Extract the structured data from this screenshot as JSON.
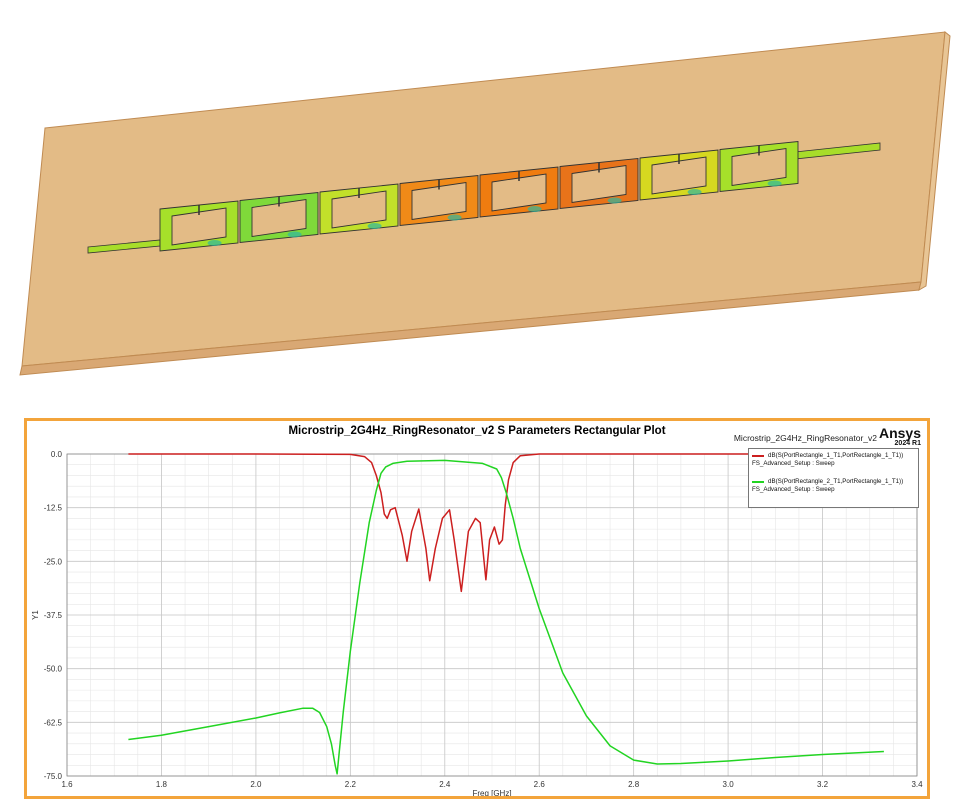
{
  "plot": {
    "title": "Microstrip_2G4Hz_RingResonator_v2 S Parameters Rectangular Plot",
    "design_name": "Microstrip_2G4Hz_RingResonator_v2",
    "brand": "Ansys",
    "brand_version": "2024 R1",
    "xlabel": "Freq [GHz]",
    "ylabel": "Y1",
    "legend": [
      {
        "label": "dB(S(PortRectangle_1_T1,PortRectangle_1_T1))",
        "sub": "FS_Advanced_Setup : Sweep",
        "color": "#cc1f1f"
      },
      {
        "label": "dB(S(PortRectangle_2_T1,PortRectangle_1_T1))",
        "sub": "FS_Advanced_Setup : Sweep",
        "color": "#22d422"
      }
    ]
  },
  "chart_data": {
    "type": "line",
    "title": "Microstrip_2G4Hz_RingResonator_v2 S Parameters Rectangular Plot",
    "xlabel": "Freq [GHz]",
    "ylabel": "Y1",
    "xlim": [
      1.6,
      3.4
    ],
    "ylim": [
      -75.0,
      0.0
    ],
    "x_ticks": [
      "1.6",
      "1.8",
      "2.0",
      "2.2",
      "2.4",
      "2.6",
      "2.8",
      "3.0",
      "3.2",
      "3.4"
    ],
    "y_ticks": [
      "0.0",
      "-12.5",
      "-25.0",
      "-37.5",
      "-50.0",
      "-62.5",
      "-75.0"
    ],
    "x_tick_values": [
      1.6,
      1.8,
      2.0,
      2.2,
      2.4,
      2.6,
      2.8,
      3.0,
      3.2,
      3.4
    ],
    "y_tick_values": [
      0,
      -12.5,
      -25,
      -37.5,
      -50,
      -62.5,
      -75
    ],
    "grid": true,
    "legend_position": "top-right",
    "series": [
      {
        "name": "dB(S(PortRectangle_1_T1,PortRectangle_1_T1))",
        "color": "#cc1f1f",
        "x": [
          1.73,
          2.0,
          2.2,
          2.23,
          2.245,
          2.255,
          2.265,
          2.272,
          2.278,
          2.285,
          2.295,
          2.31,
          2.32,
          2.33,
          2.345,
          2.36,
          2.368,
          2.38,
          2.395,
          2.41,
          2.42,
          2.435,
          2.45,
          2.465,
          2.475,
          2.487,
          2.495,
          2.505,
          2.515,
          2.522,
          2.528,
          2.535,
          2.545,
          2.56,
          2.6,
          2.8,
          3.33
        ],
        "y": [
          0,
          0,
          -0.1,
          -0.6,
          -2,
          -5,
          -9,
          -14,
          -15,
          -13,
          -12.5,
          -19,
          -25,
          -18,
          -12.8,
          -22,
          -29.5,
          -22,
          -15,
          -13,
          -20,
          -32,
          -18,
          -15,
          -16,
          -29.3,
          -20,
          -17,
          -21,
          -20,
          -12,
          -6,
          -2,
          -0.4,
          0,
          0,
          0
        ]
      },
      {
        "name": "dB(S(PortRectangle_2_T1,PortRectangle_1_T1))",
        "color": "#22d422",
        "x": [
          1.73,
          1.8,
          1.9,
          2.0,
          2.05,
          2.1,
          2.12,
          2.135,
          2.15,
          2.16,
          2.168,
          2.172,
          2.176,
          2.185,
          2.2,
          2.22,
          2.24,
          2.255,
          2.265,
          2.275,
          2.29,
          2.32,
          2.4,
          2.48,
          2.51,
          2.52,
          2.53,
          2.545,
          2.56,
          2.6,
          2.65,
          2.7,
          2.75,
          2.8,
          2.85,
          2.9,
          3.0,
          3.1,
          3.2,
          3.33
        ],
        "y": [
          -66.5,
          -65.5,
          -63.5,
          -61.5,
          -60.3,
          -59.2,
          -59.2,
          -60.2,
          -63.5,
          -67.5,
          -72.5,
          -74.5,
          -70,
          -60,
          -46,
          -30,
          -16,
          -8.5,
          -4.5,
          -3,
          -2.2,
          -1.7,
          -1.5,
          -2.2,
          -3.5,
          -5.5,
          -9,
          -15,
          -22,
          -36,
          -51,
          -61,
          -68,
          -71.3,
          -72.2,
          -72.1,
          -71.5,
          -70.7,
          -70,
          -69.3
        ]
      }
    ]
  }
}
